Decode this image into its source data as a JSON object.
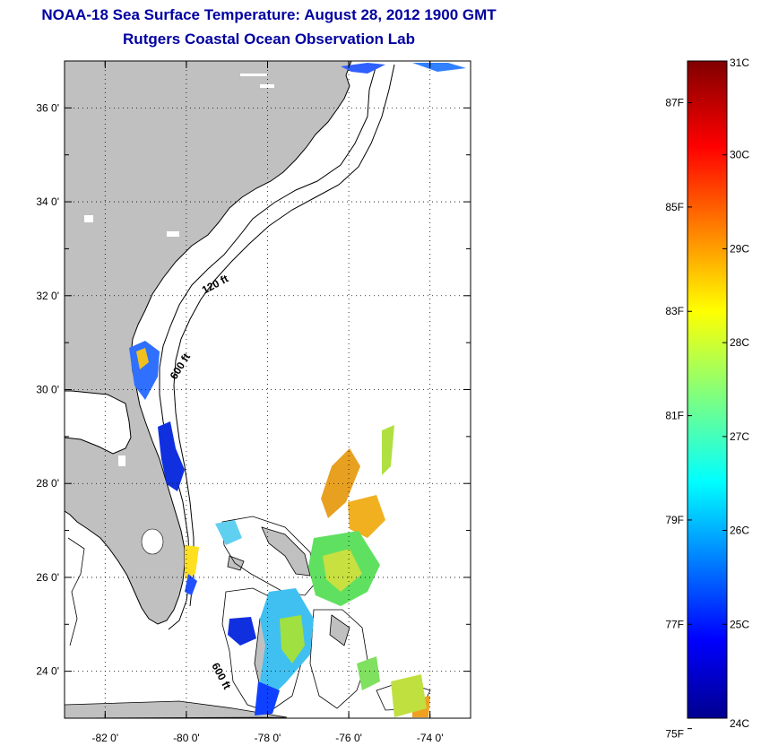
{
  "header": {
    "title": "NOAA-18 Sea Surface Temperature:  August 28, 2012 1900 GMT",
    "subtitle": "Rutgers Coastal Ocean Observation Lab"
  },
  "map": {
    "lon_range": [
      -83,
      -73
    ],
    "lat_range": [
      23,
      37
    ],
    "x_ticks": [
      {
        "lon": -82,
        "label": "-82 0'"
      },
      {
        "lon": -80,
        "label": "-80 0'"
      },
      {
        "lon": -78,
        "label": "-78 0'"
      },
      {
        "lon": -76,
        "label": "-76 0'"
      },
      {
        "lon": -74,
        "label": "-74 0'"
      }
    ],
    "y_ticks": [
      {
        "lat": 36,
        "label": "36 0'"
      },
      {
        "lat": 34,
        "label": "34 0'"
      },
      {
        "lat": 32,
        "label": "32 0'"
      },
      {
        "lat": 30,
        "label": "30 0'"
      },
      {
        "lat": 28,
        "label": "28 0'"
      },
      {
        "lat": 26,
        "label": "26 0'"
      },
      {
        "lat": 24,
        "label": "24 0'"
      }
    ],
    "contour_labels": {
      "c120": "120 ft",
      "c600a": "600 ft",
      "c600b": "600 ft"
    },
    "land_color": "#c0c0c0"
  },
  "colorbar": {
    "range_c": [
      24,
      31
    ],
    "celsius_ticks": [
      {
        "value": 31,
        "label": "31C"
      },
      {
        "value": 30,
        "label": "30C"
      },
      {
        "value": 29,
        "label": "29C"
      },
      {
        "value": 28,
        "label": "28C"
      },
      {
        "value": 27,
        "label": "27C"
      },
      {
        "value": 26,
        "label": "26C"
      },
      {
        "value": 25,
        "label": "25C"
      },
      {
        "value": 24,
        "label": "24C"
      }
    ],
    "fahrenheit_ticks": [
      {
        "value": 87,
        "label": "87F"
      },
      {
        "value": 85,
        "label": "85F"
      },
      {
        "value": 83,
        "label": "83F"
      },
      {
        "value": 81,
        "label": "81F"
      },
      {
        "value": 79,
        "label": "79F"
      },
      {
        "value": 77,
        "label": "77F"
      },
      {
        "value": 75,
        "label": "75F"
      }
    ]
  }
}
